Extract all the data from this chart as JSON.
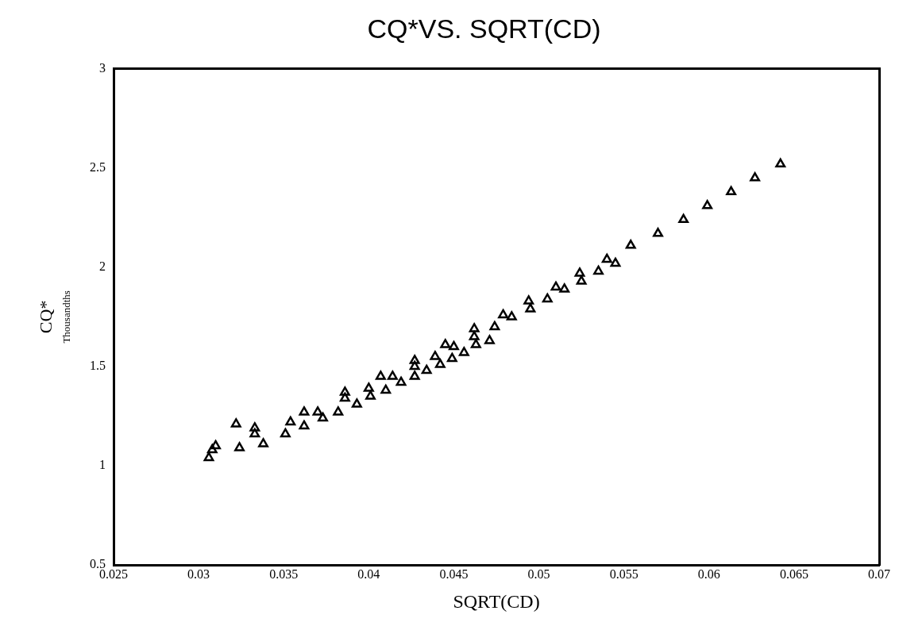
{
  "chart_data": {
    "type": "scatter",
    "title": "CQ*VS. SQRT(CD)",
    "xlabel": "SQRT(CD)",
    "ylabel": "CQ*",
    "annotations": [
      "Thousandths"
    ],
    "xlim": [
      0.025,
      0.07
    ],
    "xticks": [
      0.025,
      0.03,
      0.035,
      0.04,
      0.045,
      0.05,
      0.055,
      0.06,
      0.065,
      0.07
    ],
    "ylim": [
      0.5,
      3
    ],
    "yticks": [
      0.5,
      1,
      1.5,
      2,
      2.5,
      3
    ],
    "grid": false,
    "legend": false,
    "marker": "triangle",
    "series": [
      {
        "color": "#000000",
        "x": [
          0.0306,
          0.0308,
          0.031,
          0.0322,
          0.0324,
          0.0333,
          0.0333,
          0.0338,
          0.0351,
          0.0354,
          0.0362,
          0.0362,
          0.037,
          0.0373,
          0.0382,
          0.0386,
          0.0386,
          0.0393,
          0.04,
          0.0401,
          0.0407,
          0.041,
          0.0414,
          0.0419,
          0.0427,
          0.0427,
          0.0427,
          0.0434,
          0.0439,
          0.0442,
          0.0445,
          0.0449,
          0.045,
          0.0456,
          0.0462,
          0.0462,
          0.0463,
          0.0471,
          0.0474,
          0.0479,
          0.0484,
          0.0494,
          0.0495,
          0.0505,
          0.051,
          0.0515,
          0.0524,
          0.0525,
          0.0535,
          0.054,
          0.0545,
          0.0554,
          0.057,
          0.0585,
          0.0599,
          0.0613,
          0.0627,
          0.0642
        ],
        "values": [
          1.04,
          1.08,
          1.1,
          1.21,
          1.09,
          1.19,
          1.16,
          1.11,
          1.16,
          1.22,
          1.27,
          1.2,
          1.27,
          1.24,
          1.27,
          1.37,
          1.34,
          1.31,
          1.39,
          1.35,
          1.45,
          1.38,
          1.45,
          1.42,
          1.53,
          1.5,
          1.45,
          1.48,
          1.55,
          1.51,
          1.61,
          1.54,
          1.6,
          1.57,
          1.69,
          1.65,
          1.61,
          1.63,
          1.7,
          1.76,
          1.75,
          1.83,
          1.79,
          1.84,
          1.9,
          1.89,
          1.97,
          1.93,
          1.98,
          2.04,
          2.02,
          2.11,
          2.17,
          2.24,
          2.31,
          2.38,
          2.45,
          2.52
        ]
      }
    ]
  }
}
